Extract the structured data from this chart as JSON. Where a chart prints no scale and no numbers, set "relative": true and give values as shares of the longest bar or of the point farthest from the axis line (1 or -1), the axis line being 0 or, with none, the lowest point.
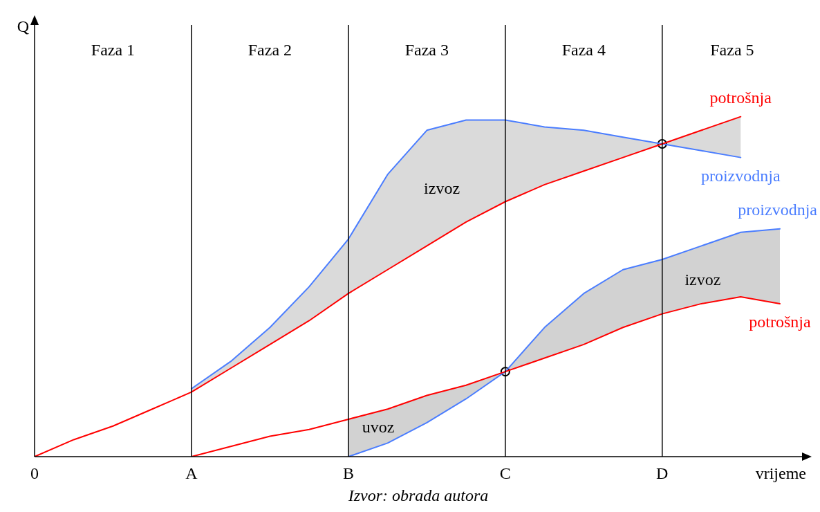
{
  "chart_data": {
    "type": "line",
    "relative": true,
    "xlabel": "vrijeme",
    "ylabel": "Q",
    "legend": false,
    "marker": "none",
    "line_style": "solid",
    "categories": [
      "0",
      null,
      null,
      null,
      "A",
      null,
      null,
      null,
      "B",
      null,
      null,
      null,
      "C",
      null,
      null,
      null,
      "D",
      null,
      null,
      null
    ],
    "series": [
      {
        "name": "potrošnja",
        "color": "#ff0000",
        "values": [
          0,
          0.05,
          0.09,
          0.14,
          0.19,
          0.26,
          0.33,
          0.4,
          0.48,
          0.55,
          0.62,
          0.69,
          0.75,
          0.8,
          0.84,
          0.88,
          0.92,
          0.96,
          1.0,
          null
        ]
      },
      {
        "name": "proizvodnja",
        "color": "#4a7dff",
        "values": [
          null,
          null,
          null,
          null,
          0.2,
          0.28,
          0.38,
          0.5,
          0.64,
          0.83,
          0.96,
          0.99,
          0.99,
          0.97,
          0.96,
          0.94,
          0.92,
          0.9,
          0.88,
          null
        ],
        "lower": [
          null,
          null,
          null,
          null,
          0.19,
          0.26,
          0.33,
          0.4,
          0.48,
          0.55,
          0.62,
          0.69,
          0.75,
          0.8,
          0.84,
          0.88,
          0.92,
          0.9,
          0.88,
          null
        ],
        "upper": [
          null,
          null,
          null,
          null,
          0.2,
          0.28,
          0.38,
          0.5,
          0.64,
          0.83,
          0.96,
          0.99,
          0.99,
          0.97,
          0.96,
          0.94,
          0.92,
          0.96,
          1.0,
          null
        ]
      },
      {
        "name": "potrošnja",
        "color": "#ff0000",
        "values": [
          null,
          null,
          null,
          null,
          0,
          0.03,
          0.06,
          0.08,
          0.11,
          0.14,
          0.18,
          0.21,
          0.25,
          0.29,
          0.33,
          0.38,
          0.42,
          0.45,
          0.47,
          0.45
        ]
      },
      {
        "name": "proizvodnja",
        "color": "#4a7dff",
        "values": [
          null,
          null,
          null,
          null,
          null,
          null,
          null,
          null,
          0,
          0.04,
          0.1,
          0.17,
          0.25,
          0.38,
          0.48,
          0.55,
          0.58,
          0.62,
          0.66,
          0.67
        ],
        "lower": [
          null,
          null,
          null,
          null,
          null,
          null,
          null,
          null,
          0,
          0.04,
          0.1,
          0.17,
          0.25,
          0.29,
          0.33,
          0.38,
          0.42,
          0.45,
          0.47,
          0.45
        ],
        "upper": [
          null,
          null,
          null,
          null,
          null,
          null,
          null,
          null,
          0.11,
          0.14,
          0.18,
          0.21,
          0.25,
          0.38,
          0.48,
          0.55,
          0.58,
          0.62,
          0.66,
          0.67
        ]
      },
      {
        "type": "scatter",
        "marker": "circle",
        "color": "#000000",
        "x": [
          "C",
          "D"
        ],
        "values": [
          0.25,
          0.92
        ]
      }
    ],
    "ref_lines": [
      {
        "axis": "x",
        "value": "A"
      },
      {
        "axis": "x",
        "value": "B"
      },
      {
        "axis": "x",
        "value": "C"
      },
      {
        "axis": "x",
        "value": "D"
      }
    ],
    "annotations": [
      "Faza 1",
      "Faza 2",
      "Faza 3",
      "Faza 4",
      "Faza 5",
      "izvoz",
      "uvoz",
      "izvoz",
      "Izvor: obrada autora"
    ]
  }
}
